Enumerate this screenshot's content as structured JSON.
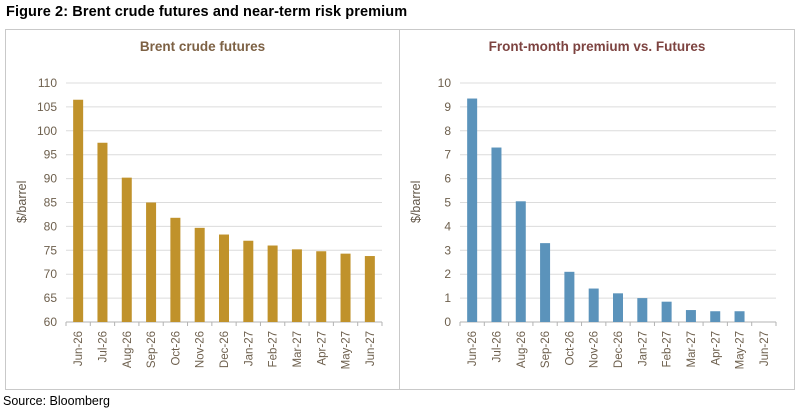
{
  "figure": {
    "title": "Figure 2: Brent crude futures and near-term risk premium"
  },
  "source": "Source: Bloomberg",
  "colors": {
    "left_bar": "#c0922b",
    "right_bar": "#5b93bb",
    "left_title": "#7d6144",
    "right_title": "#7d4340",
    "tick_label": "#6e604e",
    "gridline": "#dcdcdc",
    "axis_line": "#b3b3b3",
    "panel_border": "#c9c9c9"
  },
  "chart_data": [
    {
      "type": "bar",
      "title": "Brent crude futures",
      "ylabel": "$/barrel",
      "xlabel": "",
      "categories": [
        "Jun-26",
        "Jul-26",
        "Aug-26",
        "Sep-26",
        "Oct-26",
        "Nov-26",
        "Dec-26",
        "Jan-27",
        "Feb-27",
        "Mar-27",
        "Apr-27",
        "May-27",
        "Jun-27"
      ],
      "values": [
        106.5,
        97.5,
        90.2,
        85.0,
        81.8,
        79.7,
        78.3,
        77.0,
        76.0,
        75.2,
        74.8,
        74.3,
        73.8
      ],
      "ylim": [
        60,
        110
      ],
      "ytick_step": 5,
      "grid": true,
      "legend": "none",
      "bar_color": "#c0922b",
      "title_color": "#7d6144"
    },
    {
      "type": "bar",
      "title": "Front-month premium vs. Futures",
      "ylabel": "$/barrel",
      "xlabel": "",
      "categories": [
        "Jun-26",
        "Jul-26",
        "Aug-26",
        "Sep-26",
        "Oct-26",
        "Nov-26",
        "Dec-26",
        "Jan-27",
        "Feb-27",
        "Mar-27",
        "Apr-27",
        "May-27",
        "Jun-27"
      ],
      "values": [
        9.35,
        7.3,
        5.05,
        3.3,
        2.1,
        1.4,
        1.2,
        1.0,
        0.85,
        0.5,
        0.45,
        0.45,
        0
      ],
      "ylim": [
        0,
        10
      ],
      "ytick_step": 1,
      "grid": true,
      "legend": "none",
      "bar_color": "#5b93bb",
      "title_color": "#7d4340"
    }
  ]
}
